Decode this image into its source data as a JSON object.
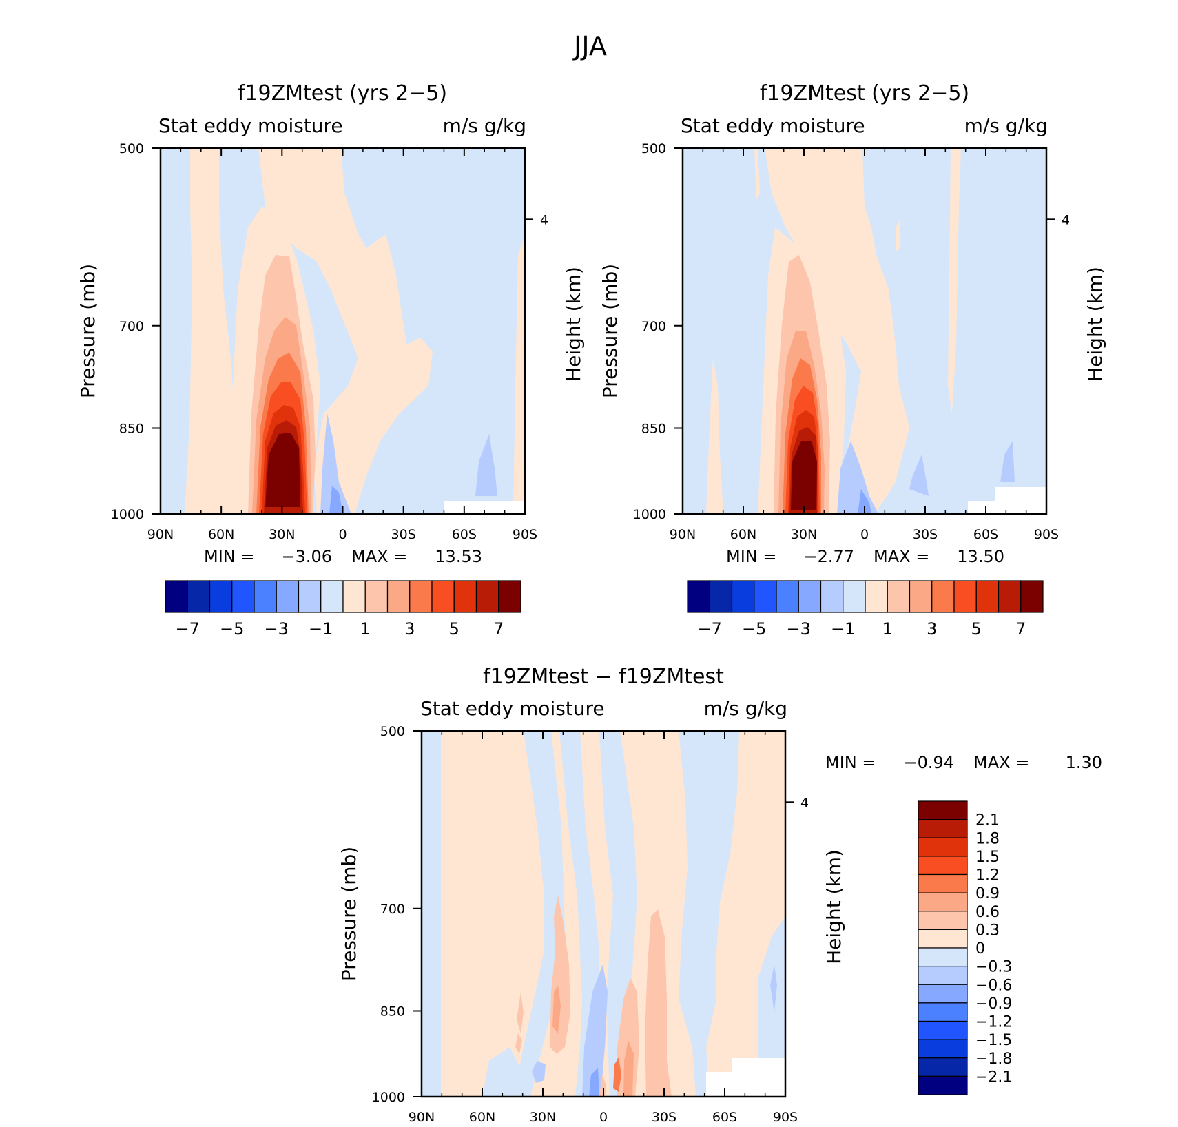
{
  "figure": {
    "title": "JJA"
  },
  "colors": {
    "blue_8": "#000080",
    "blue_7": "#0527a8",
    "blue_6": "#0a3ddd",
    "blue_5": "#2155ff",
    "blue_4": "#4b80ff",
    "blue_3": "#86a8ff",
    "blue_2": "#b6ccff",
    "blue_1": "#d5e6fb",
    "red_1": "#fee6d3",
    "red_2": "#fdc6ac",
    "red_3": "#fba887",
    "red_4": "#fb7a4b",
    "red_5": "#f84e22",
    "red_6": "#e0320b",
    "red_7": "#b81c06",
    "red_8": "#7b0000"
  },
  "chart_data": [
    {
      "type": "heatmap",
      "title": "f19ZMtest (yrs 2-5)",
      "subtitle_left": "Stat eddy moisture",
      "subtitle_right": "m/s g/kg",
      "xlabel": "",
      "ylabel": "Pressure (mb)",
      "ylabel_right": "Height (km)",
      "x_ticks": [
        "90N",
        "60N",
        "30N",
        "0",
        "30S",
        "60S",
        "90S"
      ],
      "y_ticks": [
        "500",
        "700",
        "850",
        "1000"
      ],
      "y_right_ticks": [
        "4"
      ],
      "min_label": "MIN =",
      "min_value": "-3.06",
      "max_label": "MAX =",
      "max_value": "13.53",
      "colorbar_levels": [
        -7,
        -6,
        -5,
        -4,
        -3,
        -2,
        -1,
        0,
        1,
        2,
        3,
        4,
        5,
        6,
        7
      ],
      "colorbar_labels": [
        "-7",
        "-5",
        "-3",
        "-1",
        "1",
        "3",
        "5",
        "7"
      ],
      "peak": {
        "lat": "30N",
        "pressure_mb": 950,
        "value": 13.53
      }
    },
    {
      "type": "heatmap",
      "title": "f19ZMtest (yrs 2-5)",
      "subtitle_left": "Stat eddy moisture",
      "subtitle_right": "m/s g/kg",
      "xlabel": "",
      "ylabel": "Pressure (mb)",
      "ylabel_right": "Height (km)",
      "x_ticks": [
        "90N",
        "60N",
        "30N",
        "0",
        "30S",
        "60S",
        "90S"
      ],
      "y_ticks": [
        "500",
        "700",
        "850",
        "1000"
      ],
      "y_right_ticks": [
        "4"
      ],
      "min_label": "MIN =",
      "min_value": "-2.77",
      "max_label": "MAX =",
      "max_value": "13.50",
      "colorbar_levels": [
        -7,
        -6,
        -5,
        -4,
        -3,
        -2,
        -1,
        0,
        1,
        2,
        3,
        4,
        5,
        6,
        7
      ],
      "colorbar_labels": [
        "-7",
        "-5",
        "-3",
        "-1",
        "1",
        "3",
        "5",
        "7"
      ],
      "peak": {
        "lat": "30N",
        "pressure_mb": 950,
        "value": 13.5
      }
    },
    {
      "type": "heatmap",
      "title": "f19ZMtest - f19ZMtest",
      "subtitle_left": "Stat eddy moisture",
      "subtitle_right": "m/s g/kg",
      "xlabel": "",
      "ylabel": "Pressure (mb)",
      "ylabel_right": "Height (km)",
      "x_ticks": [
        "90N",
        "60N",
        "30N",
        "0",
        "30S",
        "60S",
        "90S"
      ],
      "y_ticks": [
        "500",
        "700",
        "850",
        "1000"
      ],
      "y_right_ticks": [
        "4"
      ],
      "min_label": "MIN =",
      "min_value": "-0.94",
      "max_label": "MAX =",
      "max_value": "1.30",
      "colorbar_levels": [
        2.1,
        1.8,
        1.5,
        1.2,
        0.9,
        0.6,
        0.3,
        0,
        -0.3,
        -0.6,
        -0.9,
        -1.2,
        -1.5,
        -1.8,
        -2.1
      ],
      "colorbar_labels": [
        "2.1",
        "1.8",
        "1.5",
        "1.2",
        "0.9",
        "0.6",
        "0.3",
        "0",
        "-0.3",
        "-0.6",
        "-0.9",
        "-1.2",
        "-1.5",
        "-1.8",
        "-2.1"
      ]
    }
  ]
}
